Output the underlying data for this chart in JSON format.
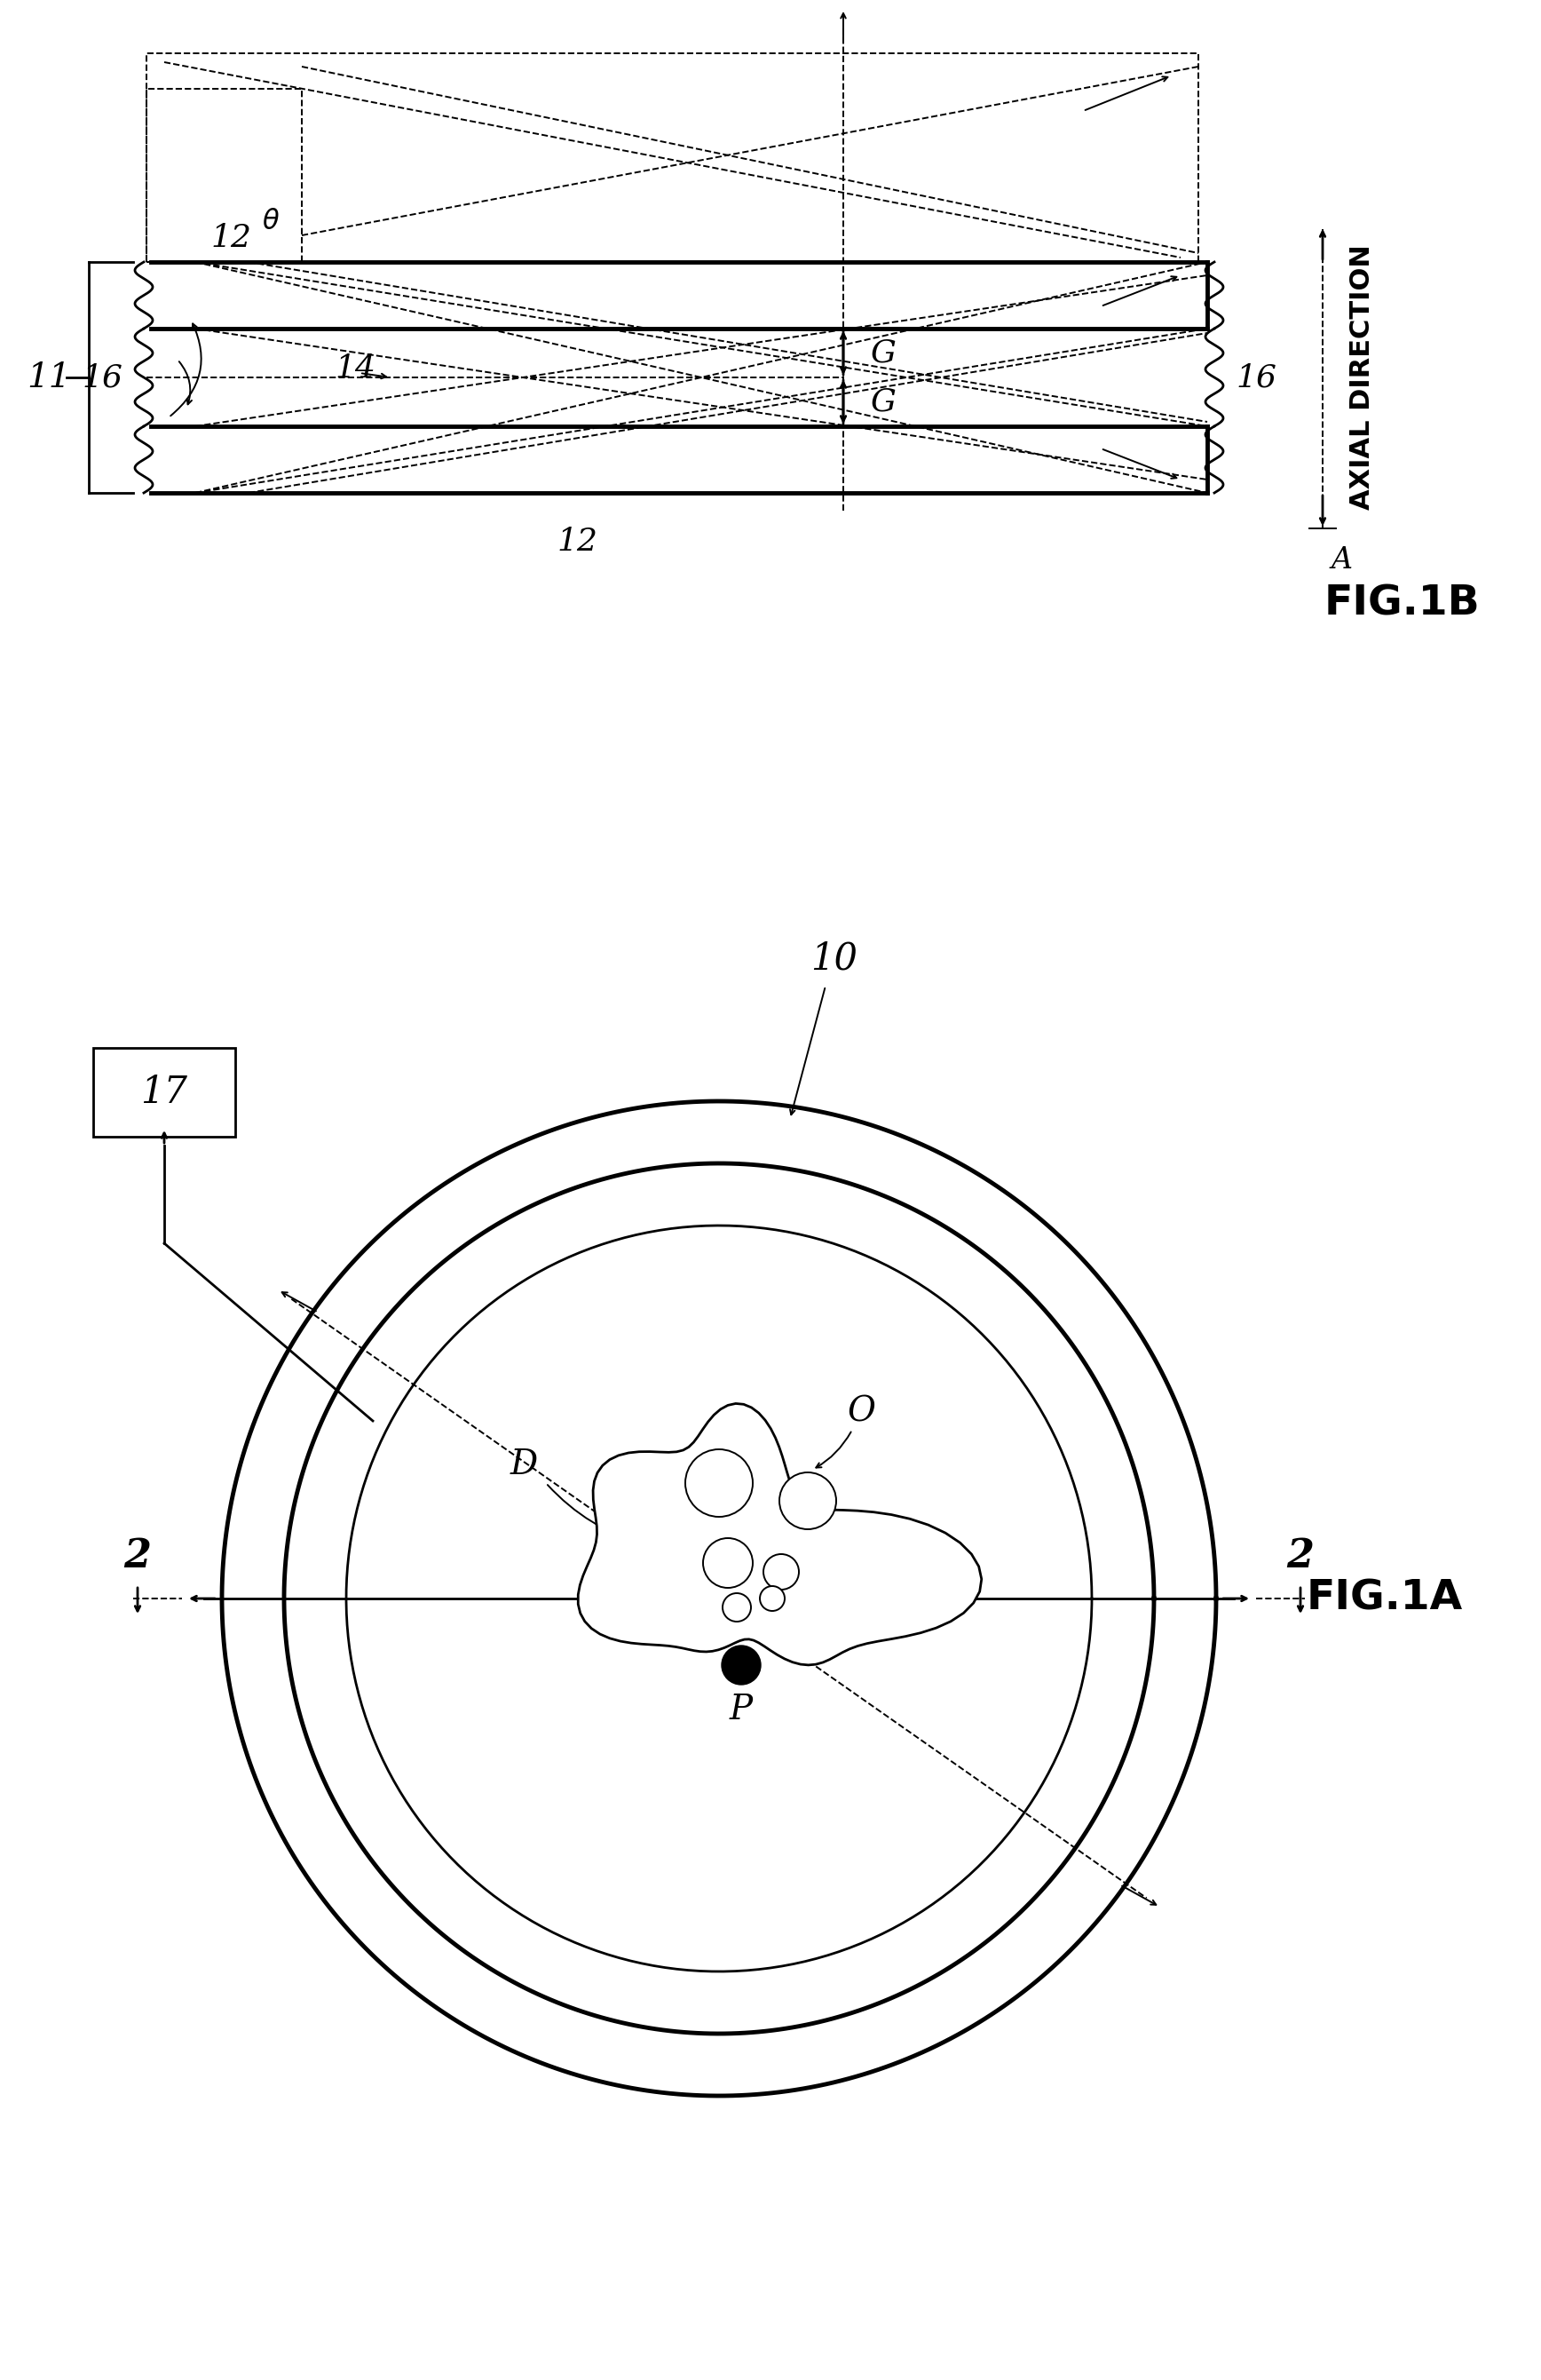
{
  "bg_color": "#ffffff",
  "line_color": "#000000",
  "fig1A_label": "FIG.1A",
  "fig1B_label": "FIG.1B",
  "axial_label": "AXIAL DIRECTION"
}
